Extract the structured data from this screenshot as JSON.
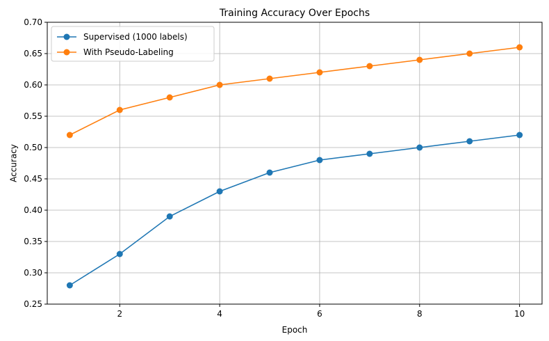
{
  "chart_data": {
    "type": "line",
    "title": "Training Accuracy Over Epochs",
    "xlabel": "Epoch",
    "ylabel": "Accuracy",
    "x": [
      1,
      2,
      3,
      4,
      5,
      6,
      7,
      8,
      9,
      10
    ],
    "xlim": [
      0.55,
      10.45
    ],
    "ylim": [
      0.25,
      0.7
    ],
    "xticks": [
      2,
      4,
      6,
      8,
      10
    ],
    "xtick_labels": [
      "2",
      "4",
      "6",
      "8",
      "10"
    ],
    "yticks": [
      0.25,
      0.3,
      0.35,
      0.4,
      0.45,
      0.5,
      0.55,
      0.6,
      0.65,
      0.7
    ],
    "ytick_labels": [
      "0.25",
      "0.30",
      "0.35",
      "0.40",
      "0.45",
      "0.50",
      "0.55",
      "0.60",
      "0.65",
      "0.70"
    ],
    "grid": true,
    "legend_position": "top-left",
    "series": [
      {
        "name": "Supervised (1000 labels)",
        "color": "#1f77b4",
        "marker": "circle",
        "values": [
          0.28,
          0.33,
          0.39,
          0.43,
          0.46,
          0.48,
          0.49,
          0.5,
          0.51,
          0.52
        ]
      },
      {
        "name": "With Pseudo-Labeling",
        "color": "#ff7f0e",
        "marker": "circle",
        "values": [
          0.52,
          0.56,
          0.58,
          0.6,
          0.61,
          0.62,
          0.63,
          0.64,
          0.65,
          0.66
        ]
      }
    ]
  }
}
